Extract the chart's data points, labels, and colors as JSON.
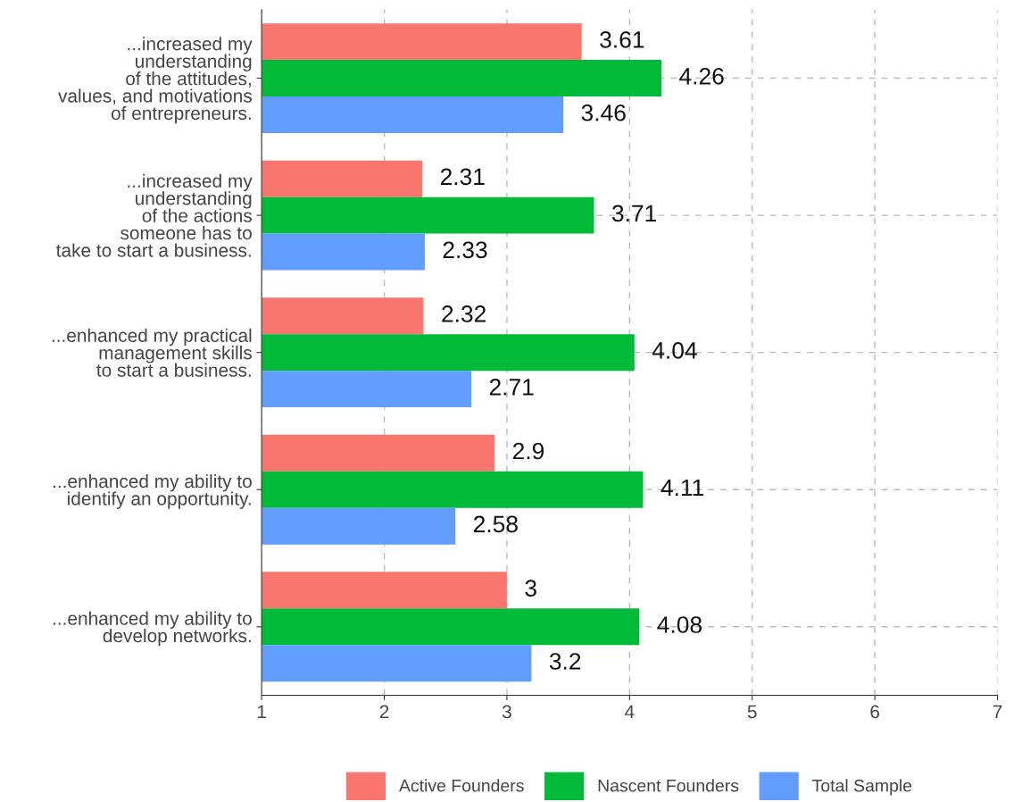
{
  "chart_data": {
    "type": "bar",
    "orientation": "horizontal",
    "categories": [
      "...increased my\nunderstanding\nof the attitudes,\nvalues, and motivations\nof entrepreneurs.",
      "...increased my\nunderstanding\nof the actions\nsomeone has to\ntake to start a business.",
      "...enhanced my practical\nmanagement skills\nto start a business.",
      "...enhanced my ability to\nidentify an opportunity.",
      "...enhanced my ability to\ndevelop networks."
    ],
    "series": [
      {
        "name": "Active Founders",
        "color": "#f8766d",
        "values": [
          3.61,
          2.31,
          2.32,
          2.9,
          3
        ]
      },
      {
        "name": "Nascent Founders",
        "color": "#00ba38",
        "values": [
          4.26,
          3.71,
          4.04,
          4.11,
          4.08
        ]
      },
      {
        "name": "Total Sample",
        "color": "#619cff",
        "values": [
          3.46,
          2.33,
          2.71,
          2.58,
          3.2
        ]
      }
    ],
    "xlim": [
      1,
      7
    ],
    "xticks": [
      1,
      2,
      3,
      4,
      5,
      6,
      7
    ],
    "data_labels": true,
    "grid": true,
    "legend": "bottom"
  }
}
